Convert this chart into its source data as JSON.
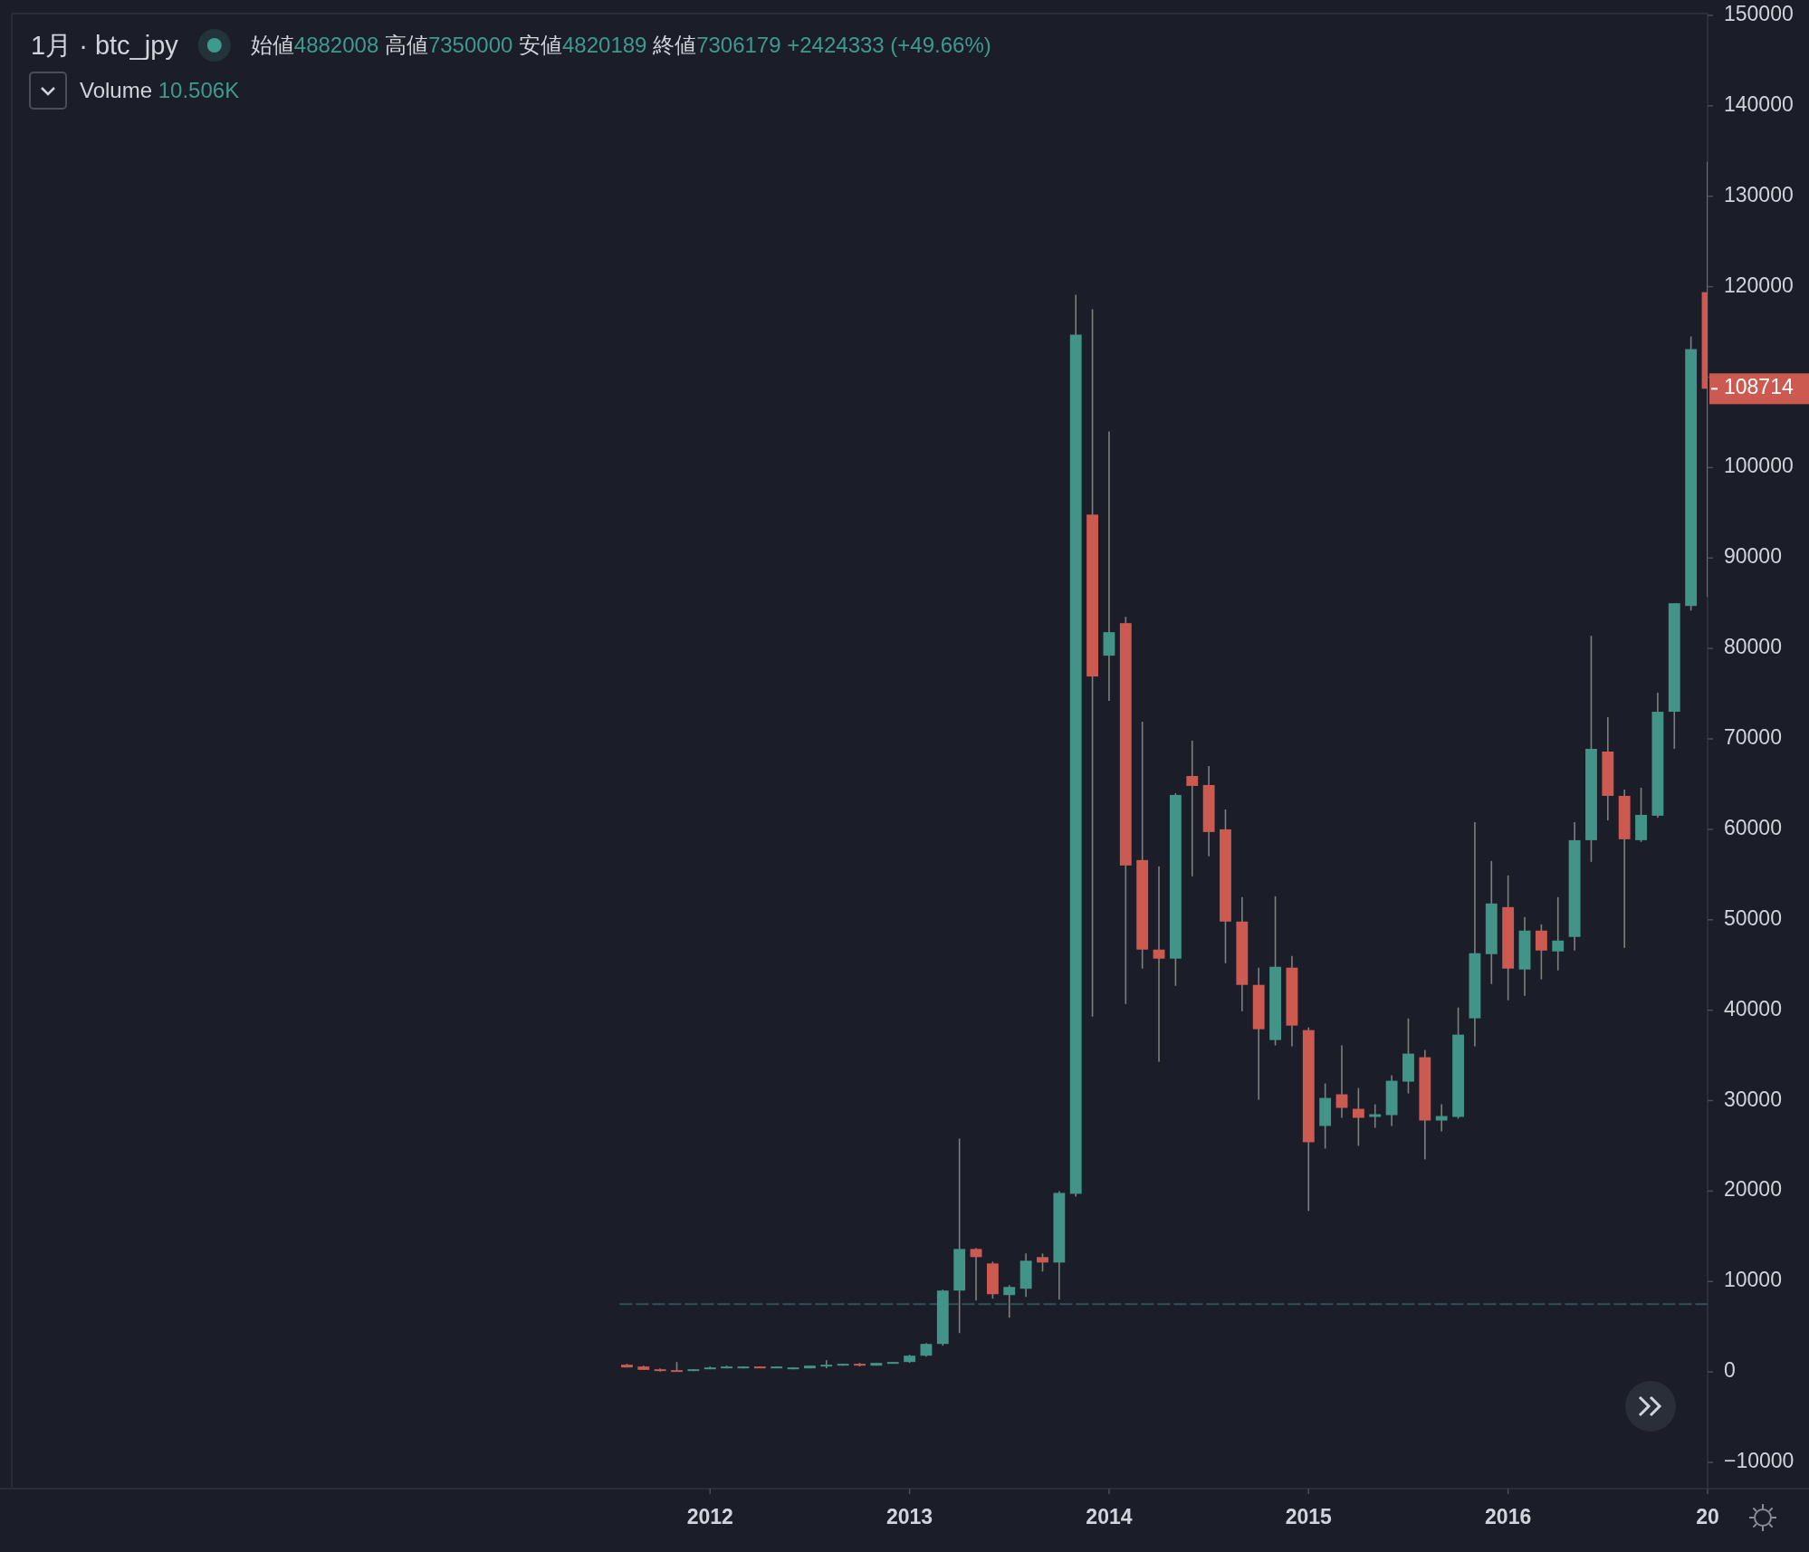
{
  "chart_data": {
    "type": "candlestick",
    "title": "1月 · btc_jpy",
    "subtitle": "始値4882008 高値7350000 安値4820189 終値7306179 +2424333 (+49.66%)",
    "annotations": [
      "Volume 10.506K",
      "108714"
    ],
    "x": [
      "2011-08",
      "2011-09",
      "2011-10",
      "2011-11",
      "2011-12",
      "2012-01",
      "2012-02",
      "2012-03",
      "2012-04",
      "2012-05",
      "2012-06",
      "2012-07",
      "2012-08",
      "2012-09",
      "2012-10",
      "2012-11",
      "2012-12",
      "2013-01",
      "2013-02",
      "2013-03",
      "2013-04",
      "2013-05",
      "2013-06",
      "2013-07",
      "2013-08",
      "2013-09",
      "2013-10",
      "2013-11",
      "2013-12",
      "2014-01",
      "2014-02",
      "2014-03",
      "2014-04",
      "2014-05",
      "2014-06",
      "2014-07",
      "2014-08",
      "2014-09",
      "2014-10",
      "2014-11",
      "2014-12",
      "2015-01",
      "2015-02",
      "2015-03",
      "2015-04",
      "2015-05",
      "2015-06",
      "2015-07",
      "2015-08",
      "2015-09",
      "2015-10",
      "2015-11",
      "2015-12",
      "2016-01",
      "2016-02",
      "2016-03",
      "2016-04",
      "2016-05",
      "2016-06",
      "2016-07",
      "2016-08",
      "2016-09",
      "2016-10",
      "2016-11",
      "2016-12",
      "2017-01"
    ],
    "ohlc": [
      [
        800,
        900,
        500,
        500
      ],
      [
        600,
        700,
        230,
        230
      ],
      [
        300,
        400,
        50,
        100
      ],
      [
        200,
        1100,
        50,
        100
      ],
      [
        100,
        300,
        100,
        300
      ],
      [
        300,
        600,
        300,
        500
      ],
      [
        500,
        700,
        400,
        600
      ],
      [
        500,
        600,
        400,
        600
      ],
      [
        600,
        600,
        500,
        500
      ],
      [
        500,
        600,
        500,
        600
      ],
      [
        300,
        500,
        300,
        500
      ],
      [
        400,
        700,
        400,
        700
      ],
      [
        600,
        1300,
        400,
        800
      ],
      [
        700,
        900,
        700,
        900
      ],
      [
        900,
        1000,
        600,
        700
      ],
      [
        700,
        1000,
        700,
        1000
      ],
      [
        1000,
        1100,
        1000,
        1100
      ],
      [
        1100,
        1900,
        1000,
        1800
      ],
      [
        1800,
        3200,
        1700,
        3100
      ],
      [
        3100,
        9100,
        2900,
        9000
      ],
      [
        9000,
        25800,
        4300,
        13600
      ],
      [
        13600,
        13700,
        7900,
        12700
      ],
      [
        12000,
        12200,
        8100,
        8600
      ],
      [
        8500,
        9600,
        6000,
        9400
      ],
      [
        9200,
        13100,
        8300,
        12300
      ],
      [
        12700,
        13100,
        11100,
        12100
      ],
      [
        12100,
        20000,
        8000,
        19800
      ],
      [
        19700,
        119100,
        19400,
        114700
      ],
      [
        94800,
        117500,
        39300,
        76900
      ],
      [
        79200,
        104000,
        74200,
        81800
      ],
      [
        82800,
        83500,
        40700,
        56000
      ],
      [
        56600,
        71900,
        44600,
        46700
      ],
      [
        46700,
        55900,
        34300,
        45700
      ],
      [
        45700,
        64000,
        42700,
        63800
      ],
      [
        65900,
        69800,
        54800,
        64800
      ],
      [
        64900,
        67000,
        57000,
        59700
      ],
      [
        60000,
        62200,
        45200,
        49800
      ],
      [
        49800,
        52500,
        39900,
        42800
      ],
      [
        42800,
        44700,
        30100,
        37900
      ],
      [
        36700,
        52600,
        36100,
        44800
      ],
      [
        44700,
        46000,
        36000,
        38300
      ],
      [
        37800,
        38100,
        17800,
        25400
      ],
      [
        27200,
        31900,
        24700,
        30300
      ],
      [
        30700,
        36100,
        28100,
        29200
      ],
      [
        29100,
        31400,
        25000,
        28100
      ],
      [
        28200,
        29600,
        27000,
        28500
      ],
      [
        28400,
        32800,
        27200,
        32200
      ],
      [
        32100,
        39100,
        30800,
        35200
      ],
      [
        34800,
        35600,
        23500,
        27800
      ],
      [
        27800,
        29600,
        26600,
        28300
      ],
      [
        28200,
        40300,
        28000,
        37300
      ],
      [
        39100,
        60800,
        36000,
        46300
      ],
      [
        46200,
        56500,
        42900,
        51800
      ],
      [
        51400,
        54900,
        41100,
        44600
      ],
      [
        44500,
        50300,
        41600,
        48800
      ],
      [
        48800,
        49500,
        43400,
        46600
      ],
      [
        46500,
        52500,
        44400,
        47700
      ],
      [
        48100,
        60800,
        46600,
        58800
      ],
      [
        58800,
        81400,
        56400,
        68900
      ],
      [
        68600,
        72400,
        61000,
        63700
      ],
      [
        63700,
        64400,
        46900,
        58900
      ],
      [
        58800,
        64600,
        58600,
        61600
      ],
      [
        61500,
        75100,
        61300,
        73000
      ],
      [
        73000,
        85000,
        68900,
        85000
      ],
      [
        84700,
        114500,
        84200,
        113100
      ],
      [
        119400,
        133800,
        85700,
        108714
      ]
    ],
    "colors": [
      "#cc5a50",
      "#cc5a50",
      "#cc5a50",
      "#cc5a50",
      "#419487",
      "#419487",
      "#419487",
      "#419487",
      "#cc5a50",
      "#419487",
      "#419487",
      "#419487",
      "#419487",
      "#419487",
      "#cc5a50",
      "#419487",
      "#419487",
      "#419487",
      "#419487",
      "#419487",
      "#419487",
      "#cc5a50",
      "#cc5a50",
      "#419487",
      "#419487",
      "#cc5a50",
      "#419487",
      "#419487",
      "#cc5a50",
      "#419487",
      "#cc5a50",
      "#cc5a50",
      "#cc5a50",
      "#419487",
      "#cc5a50",
      "#cc5a50",
      "#cc5a50",
      "#cc5a50",
      "#cc5a50",
      "#419487",
      "#cc5a50",
      "#cc5a50",
      "#419487",
      "#cc5a50",
      "#cc5a50",
      "#419487",
      "#419487",
      "#419487",
      "#cc5a50",
      "#419487",
      "#419487",
      "#419487",
      "#419487",
      "#cc5a50",
      "#419487",
      "#cc5a50",
      "#419487",
      "#419487",
      "#419487",
      "#cc5a50",
      "#cc5a50",
      "#419487",
      "#419487",
      "#419487",
      "#419487",
      "#cc5a50"
    ],
    "xlim": [
      "2008-07",
      "2017-01"
    ],
    "ylim": [
      -12900,
      150200
    ],
    "xticks": [
      {
        "value": "2012-01",
        "label": "2012"
      },
      {
        "value": "2013-01",
        "label": "2013"
      },
      {
        "value": "2014-01",
        "label": "2014"
      },
      {
        "value": "2015-01",
        "label": "2015"
      },
      {
        "value": "2016-01",
        "label": "2016"
      },
      {
        "value": "2017-01",
        "label": "20"
      }
    ],
    "yticks": [
      {
        "value": -10000,
        "label": "−10000"
      },
      0,
      10000,
      20000,
      30000,
      40000,
      50000,
      60000,
      70000,
      80000,
      90000,
      100000,
      {
        "value": 110000,
        "label": null
      },
      120000,
      130000,
      140000,
      150000
    ],
    "ref_lines": [
      {
        "axis": "y",
        "value": 7500,
        "color": "#34505a",
        "line_style": "dashed"
      }
    ]
  }
}
